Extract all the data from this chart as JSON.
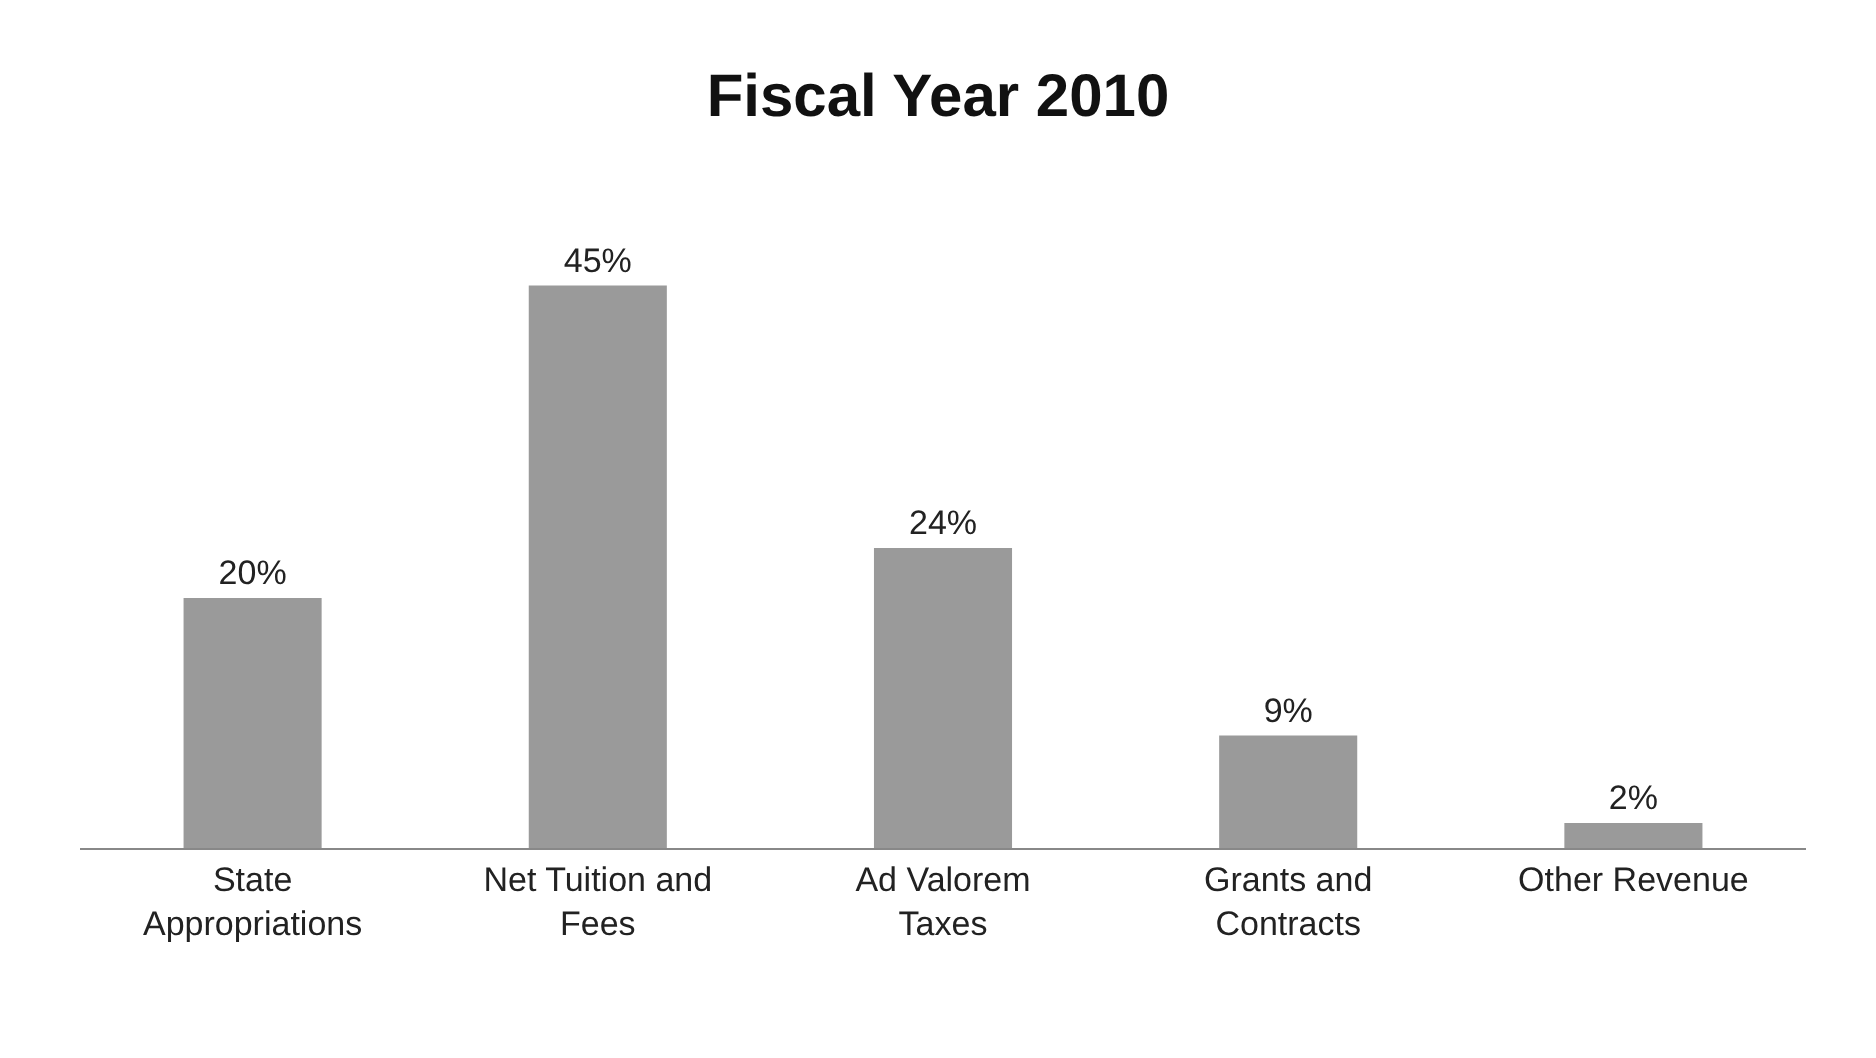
{
  "chart_data": {
    "type": "bar",
    "title": "Fiscal Year 2010",
    "categories": [
      "State\nAppropriations",
      "Net Tuition and\nFees",
      "Ad Valorem\nTaxes",
      "Grants and\nContracts",
      "Other Revenue"
    ],
    "values": [
      20,
      45,
      24,
      9,
      2
    ],
    "value_labels": [
      "20%",
      "45%",
      "24%",
      "9%",
      "2%"
    ],
    "color": "#9a9a9a"
  }
}
